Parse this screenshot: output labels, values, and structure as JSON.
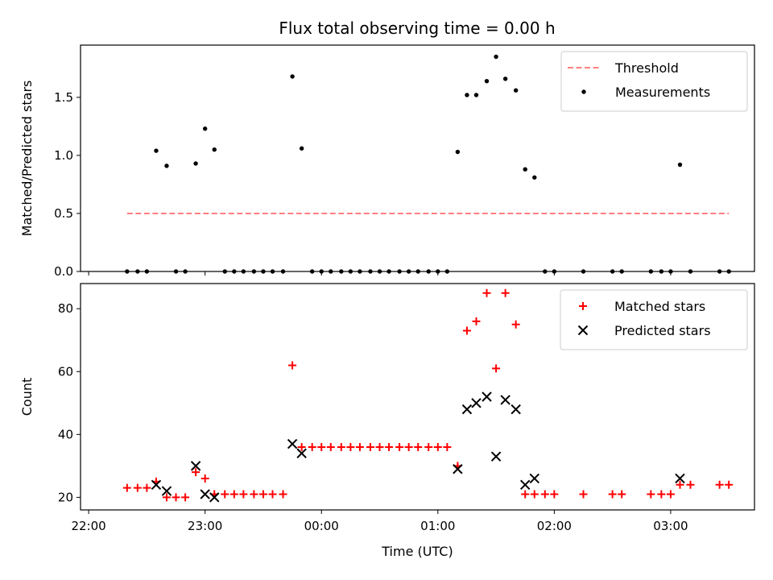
{
  "title": "Flux total observing time = 0.00 h",
  "chart_data": [
    {
      "type": "scatter",
      "ylabel": "Matched/Predicted stars",
      "ylim": [
        0,
        1.95
      ],
      "yticks": [
        "0.0",
        "0.5",
        "1.0",
        "1.5"
      ],
      "threshold": {
        "name": "Threshold",
        "value": 0.5,
        "x_start": 22.33,
        "x_end": 27.5,
        "color": "#ff7f7f"
      },
      "legend_placement": "top-right",
      "series": [
        {
          "name": "Measurements",
          "color": "#000000",
          "points": [
            [
              22.33,
              0
            ],
            [
              22.42,
              0
            ],
            [
              22.5,
              0
            ],
            [
              22.58,
              1.04
            ],
            [
              22.67,
              0.91
            ],
            [
              22.75,
              0
            ],
            [
              22.83,
              0
            ],
            [
              22.92,
              0.93
            ],
            [
              23.0,
              1.23
            ],
            [
              23.08,
              1.05
            ],
            [
              23.17,
              0
            ],
            [
              23.25,
              0
            ],
            [
              23.33,
              0
            ],
            [
              23.42,
              0
            ],
            [
              23.5,
              0
            ],
            [
              23.58,
              0
            ],
            [
              23.67,
              0
            ],
            [
              23.75,
              1.68
            ],
            [
              23.83,
              1.06
            ],
            [
              23.92,
              0
            ],
            [
              24.0,
              0
            ],
            [
              24.08,
              0
            ],
            [
              24.17,
              0
            ],
            [
              24.25,
              0
            ],
            [
              24.33,
              0
            ],
            [
              24.42,
              0
            ],
            [
              24.5,
              0
            ],
            [
              24.58,
              0
            ],
            [
              24.67,
              0
            ],
            [
              24.75,
              0
            ],
            [
              24.83,
              0
            ],
            [
              24.92,
              0
            ],
            [
              25.0,
              0
            ],
            [
              25.08,
              0
            ],
            [
              25.17,
              1.03
            ],
            [
              25.25,
              1.52
            ],
            [
              25.33,
              1.52
            ],
            [
              25.42,
              1.64
            ],
            [
              25.5,
              1.85
            ],
            [
              25.58,
              1.66
            ],
            [
              25.67,
              1.56
            ],
            [
              25.75,
              0.88
            ],
            [
              25.83,
              0.81
            ],
            [
              25.92,
              0
            ],
            [
              26.0,
              0
            ],
            [
              26.25,
              0
            ],
            [
              26.5,
              0
            ],
            [
              26.58,
              0
            ],
            [
              26.83,
              0
            ],
            [
              26.92,
              0
            ],
            [
              27.0,
              0
            ],
            [
              27.08,
              0.92
            ],
            [
              27.17,
              0
            ],
            [
              27.42,
              0
            ],
            [
              27.5,
              0
            ]
          ]
        }
      ]
    },
    {
      "type": "scatter",
      "ylabel": "Count",
      "xlabel": "Time (UTC)",
      "ylim": [
        16,
        88
      ],
      "yticks": [
        "20",
        "40",
        "60",
        "80"
      ],
      "xlim": [
        21.93,
        27.72
      ],
      "xticks": [
        {
          "value": 22,
          "label": "22:00"
        },
        {
          "value": 23,
          "label": "23:00"
        },
        {
          "value": 24,
          "label": "00:00"
        },
        {
          "value": 25,
          "label": "01:00"
        },
        {
          "value": 26,
          "label": "02:00"
        },
        {
          "value": 27,
          "label": "03:00"
        }
      ],
      "legend_placement": "top-right",
      "series": [
        {
          "name": "Matched stars",
          "marker": "plus",
          "color": "#ff0000",
          "points": [
            [
              22.33,
              23
            ],
            [
              22.42,
              23
            ],
            [
              22.5,
              23
            ],
            [
              22.58,
              25
            ],
            [
              22.67,
              20
            ],
            [
              22.75,
              20
            ],
            [
              22.83,
              20
            ],
            [
              22.92,
              28
            ],
            [
              23.0,
              26
            ],
            [
              23.08,
              21
            ],
            [
              23.17,
              21
            ],
            [
              23.25,
              21
            ],
            [
              23.33,
              21
            ],
            [
              23.42,
              21
            ],
            [
              23.5,
              21
            ],
            [
              23.58,
              21
            ],
            [
              23.67,
              21
            ],
            [
              23.75,
              62
            ],
            [
              23.83,
              36
            ],
            [
              23.92,
              36
            ],
            [
              24.0,
              36
            ],
            [
              24.08,
              36
            ],
            [
              24.17,
              36
            ],
            [
              24.25,
              36
            ],
            [
              24.33,
              36
            ],
            [
              24.42,
              36
            ],
            [
              24.5,
              36
            ],
            [
              24.58,
              36
            ],
            [
              24.67,
              36
            ],
            [
              24.75,
              36
            ],
            [
              24.83,
              36
            ],
            [
              24.92,
              36
            ],
            [
              25.0,
              36
            ],
            [
              25.08,
              36
            ],
            [
              25.17,
              30
            ],
            [
              25.25,
              73
            ],
            [
              25.33,
              76
            ],
            [
              25.42,
              85
            ],
            [
              25.5,
              61
            ],
            [
              25.58,
              85
            ],
            [
              25.67,
              75
            ],
            [
              25.75,
              21
            ],
            [
              25.83,
              21
            ],
            [
              25.92,
              21
            ],
            [
              26.0,
              21
            ],
            [
              26.25,
              21
            ],
            [
              26.5,
              21
            ],
            [
              26.58,
              21
            ],
            [
              26.83,
              21
            ],
            [
              26.92,
              21
            ],
            [
              27.0,
              21
            ],
            [
              27.08,
              24
            ],
            [
              27.17,
              24
            ],
            [
              27.42,
              24
            ],
            [
              27.5,
              24
            ]
          ]
        },
        {
          "name": "Predicted stars",
          "marker": "x",
          "color": "#000000",
          "points": [
            [
              22.58,
              24
            ],
            [
              22.67,
              22
            ],
            [
              22.92,
              30
            ],
            [
              23.0,
              21
            ],
            [
              23.08,
              20
            ],
            [
              23.75,
              37
            ],
            [
              23.83,
              34
            ],
            [
              25.17,
              29
            ],
            [
              25.25,
              48
            ],
            [
              25.33,
              50
            ],
            [
              25.42,
              52
            ],
            [
              25.5,
              33
            ],
            [
              25.58,
              51
            ],
            [
              25.67,
              48
            ],
            [
              25.75,
              24
            ],
            [
              25.83,
              26
            ],
            [
              27.08,
              26
            ]
          ]
        }
      ]
    }
  ]
}
